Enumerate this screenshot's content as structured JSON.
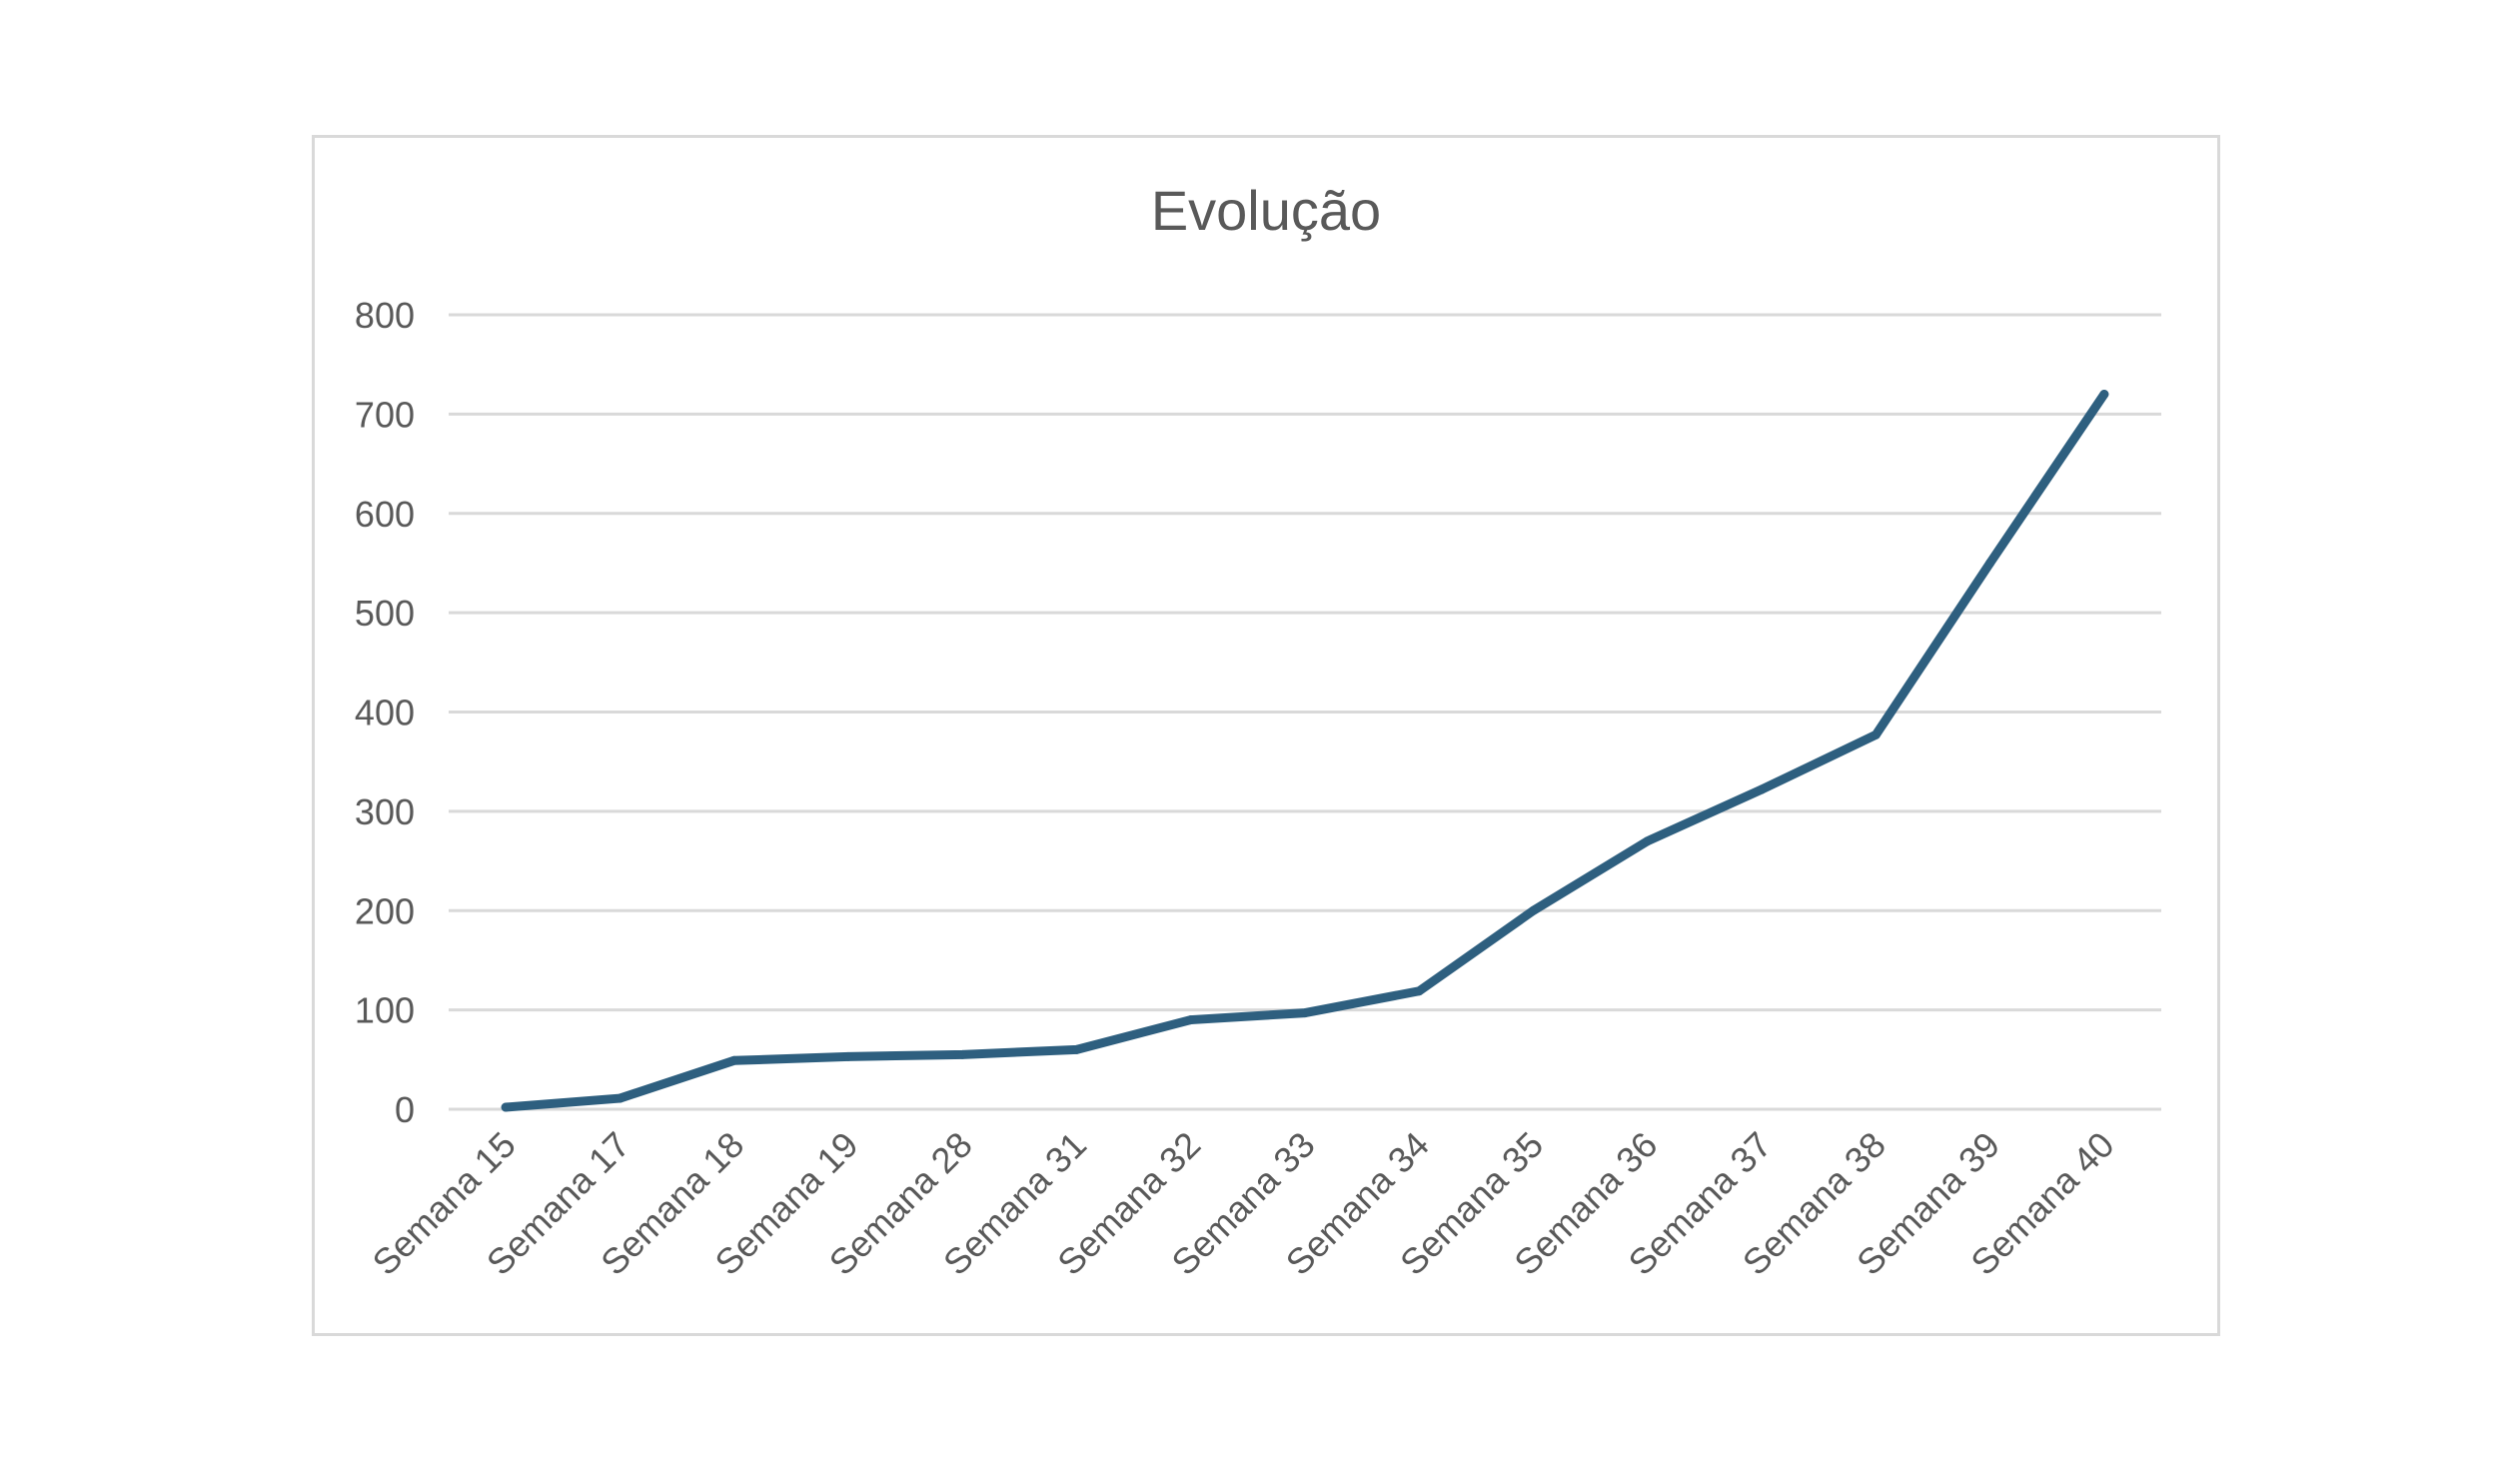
{
  "chart_data": {
    "type": "line",
    "title": "Evolução",
    "xlabel": "",
    "ylabel": "",
    "categories": [
      "Semana 15",
      "Semana 17",
      "Semana 18",
      "Semana 19",
      "Semana 28",
      "Semana 31",
      "Semana 32",
      "Semana 33",
      "Semana 34",
      "Semana 35",
      "Semana 36",
      "Semana 37",
      "Semana 38",
      "Semana 39",
      "Semana 40"
    ],
    "series": [
      {
        "values": [
          2,
          11,
          49,
          53,
          55,
          60,
          90,
          97,
          119,
          200,
          270,
          322,
          377,
          550,
          720
        ],
        "color": "#2e5f7f"
      }
    ],
    "ylim": [
      0,
      800
    ],
    "yticks": [
      0,
      100,
      200,
      300,
      400,
      500,
      600,
      700,
      800
    ],
    "grid": true,
    "legend": "none",
    "colors": {
      "line": "#2e5f7f",
      "grid": "#d9d9d9",
      "text": "#595959",
      "border": "#d9d9d9"
    }
  }
}
